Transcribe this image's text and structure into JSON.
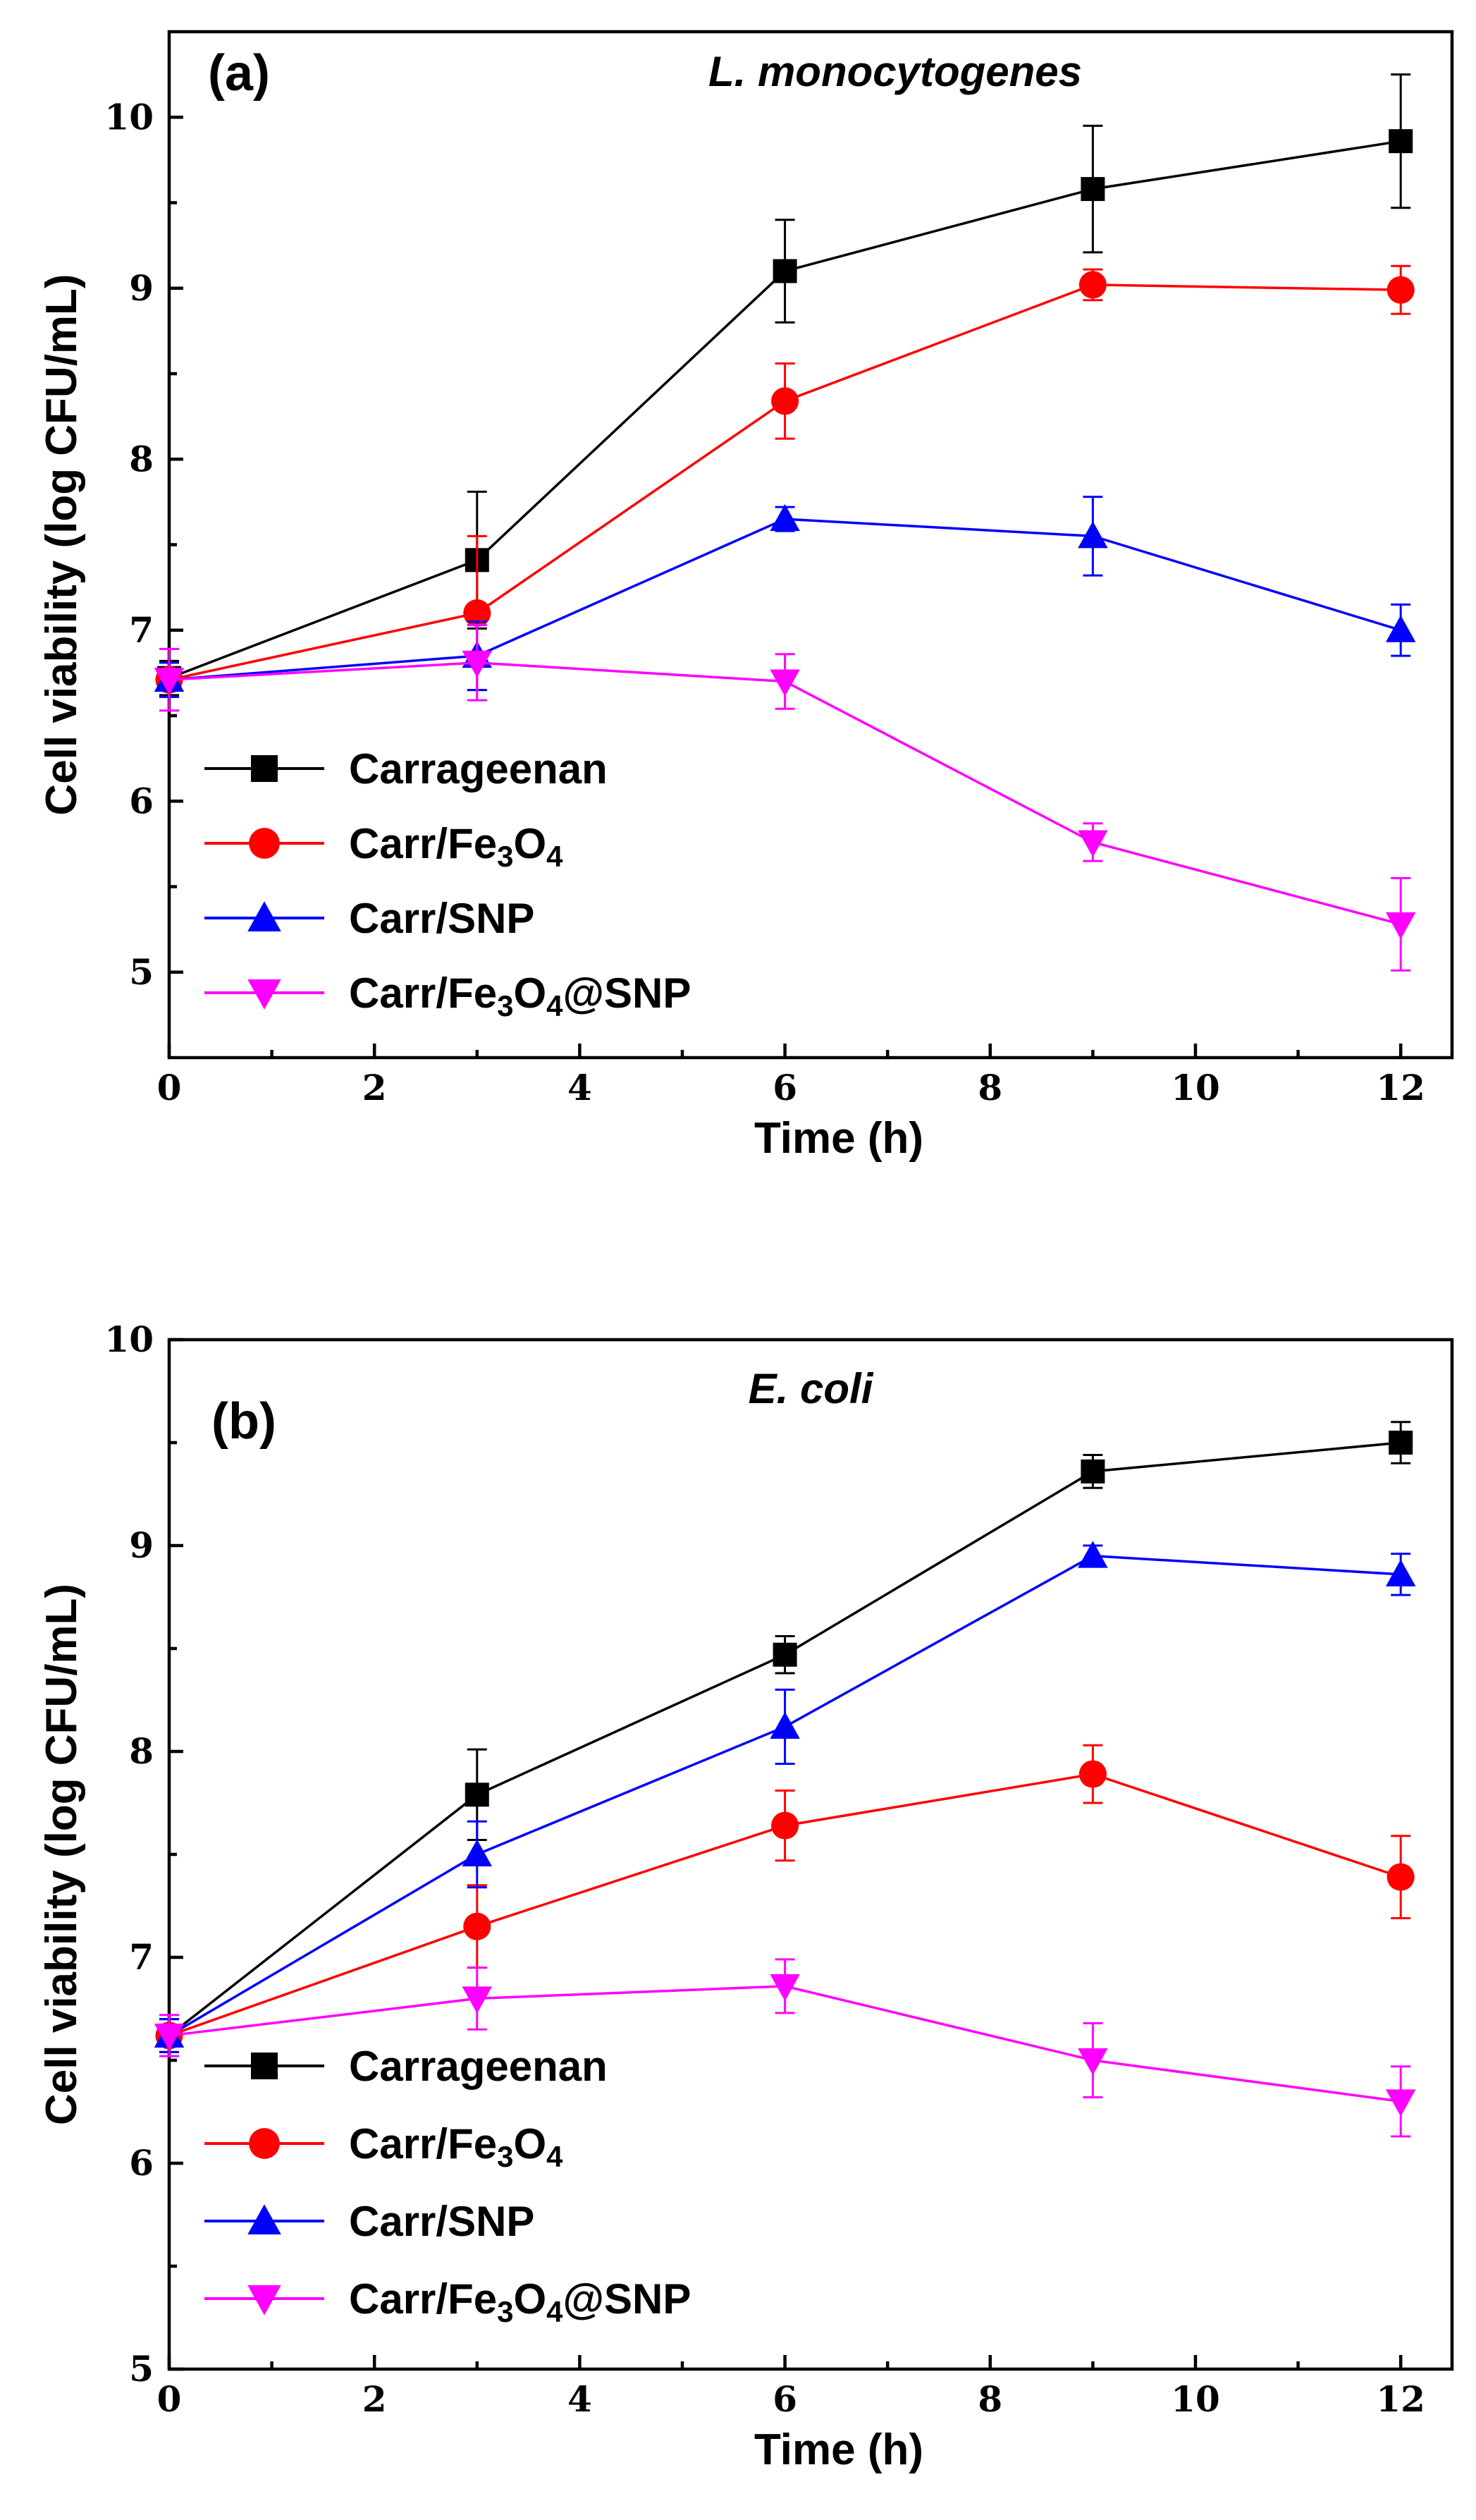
{
  "chart_data": [
    {
      "type": "line",
      "panel_label": "(a)",
      "title": "L. monocytogenes",
      "xlabel": "Time (h)",
      "ylabel": "Cell viability (log CFU/mL)",
      "xlim": [
        0,
        12.5
      ],
      "ylim": [
        4.5,
        10.5
      ],
      "xticks": [
        0,
        2,
        4,
        6,
        8,
        10,
        12
      ],
      "yticks": [
        5,
        6,
        7,
        8,
        9,
        10
      ],
      "x": [
        0,
        3,
        6,
        9,
        12
      ],
      "legend_position": "left",
      "series": [
        {
          "name": "Carrageenan",
          "sub": "",
          "color": "#000000",
          "marker": "square",
          "values": [
            6.72,
            7.41,
            9.1,
            9.58,
            9.86
          ],
          "errors": [
            0.1,
            0.4,
            0.3,
            0.37,
            0.39
          ]
        },
        {
          "name": "Carr/Fe",
          "sub": "3",
          "name2": "O",
          "sub2": "4",
          "tail": "",
          "color": "#ff0000",
          "marker": "circle",
          "values": [
            6.71,
            7.1,
            8.34,
            9.02,
            8.99
          ],
          "errors": [
            0.1,
            0.45,
            0.22,
            0.09,
            0.14
          ]
        },
        {
          "name": "Carr/SNP",
          "sub": "",
          "color": "#0000ff",
          "marker": "triangle-up",
          "values": [
            6.71,
            6.85,
            7.65,
            7.55,
            7.0
          ],
          "errors": [
            0.1,
            0.2,
            0.07,
            0.23,
            0.15
          ]
        },
        {
          "name": "Carr/Fe",
          "sub": "3",
          "name2": "O",
          "sub2": "4",
          "tail": "@SNP",
          "color": "#ff00ff",
          "marker": "triangle-down",
          "values": [
            6.71,
            6.81,
            6.7,
            5.76,
            5.28
          ],
          "errors": [
            0.18,
            0.22,
            0.16,
            0.11,
            0.27
          ]
        }
      ]
    },
    {
      "type": "line",
      "panel_label": "(b)",
      "title": "E. coli",
      "xlabel": "Time (h)",
      "ylabel": "Cell viability (log CFU/mL)",
      "xlim": [
        0,
        12.5
      ],
      "ylim": [
        5,
        10
      ],
      "xticks": [
        0,
        2,
        4,
        6,
        8,
        10,
        12
      ],
      "yticks": [
        5,
        6,
        7,
        8,
        9,
        10
      ],
      "x": [
        0,
        3,
        6,
        9,
        12
      ],
      "legend_position": "bottom-left",
      "series": [
        {
          "name": "Carrageenan",
          "sub": "",
          "color": "#000000",
          "marker": "square",
          "values": [
            6.62,
            7.79,
            8.47,
            9.36,
            9.5
          ],
          "errors": [
            0.08,
            0.22,
            0.09,
            0.08,
            0.1
          ]
        },
        {
          "name": "Carr/Fe",
          "sub": "3",
          "name2": "O",
          "sub2": "4",
          "tail": "",
          "color": "#ff0000",
          "marker": "circle",
          "values": [
            6.62,
            7.15,
            7.64,
            7.89,
            7.39
          ],
          "errors": [
            0.08,
            0.2,
            0.17,
            0.14,
            0.2
          ]
        },
        {
          "name": "Carr/SNP",
          "sub": "",
          "color": "#0000ff",
          "marker": "triangle-up",
          "values": [
            6.62,
            7.5,
            8.12,
            8.95,
            8.86
          ],
          "errors": [
            0.08,
            0.16,
            0.18,
            0.05,
            0.1
          ]
        },
        {
          "name": "Carr/Fe",
          "sub": "3",
          "name2": "O",
          "sub2": "4",
          "tail": "@SNP",
          "color": "#ff00ff",
          "marker": "triangle-down",
          "values": [
            6.62,
            6.8,
            6.86,
            6.5,
            6.3
          ],
          "errors": [
            0.1,
            0.15,
            0.13,
            0.18,
            0.17
          ]
        }
      ]
    }
  ]
}
